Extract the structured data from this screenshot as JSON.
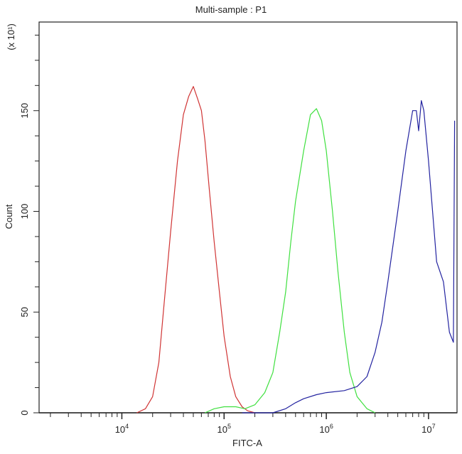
{
  "chart_data": {
    "type": "line",
    "title": "Multi-sample : P1",
    "xlabel": "FITC-A",
    "ylabel": "Count",
    "y_multiplier_label": "(x 10¹)",
    "x_scale": "log",
    "xlim": [
      1550,
      19000000
    ],
    "ylim": [
      0,
      194
    ],
    "x_ticks": [
      {
        "value": 10000,
        "base": "10",
        "exp": "4"
      },
      {
        "value": 100000,
        "base": "10",
        "exp": "5"
      },
      {
        "value": 1000000,
        "base": "10",
        "exp": "6"
      },
      {
        "value": 10000000,
        "base": "10",
        "exp": "7"
      }
    ],
    "y_ticks": [
      0,
      50,
      100,
      150
    ],
    "grid": false,
    "series": [
      {
        "color": "#d03434",
        "points": [
          [
            14000,
            0
          ],
          [
            17000,
            2
          ],
          [
            20000,
            8
          ],
          [
            23000,
            25
          ],
          [
            26000,
            55
          ],
          [
            30000,
            90
          ],
          [
            35000,
            125
          ],
          [
            40000,
            148
          ],
          [
            45000,
            157
          ],
          [
            50000,
            162
          ],
          [
            55000,
            156
          ],
          [
            60000,
            150
          ],
          [
            65000,
            135
          ],
          [
            72000,
            110
          ],
          [
            80000,
            85
          ],
          [
            90000,
            60
          ],
          [
            100000,
            38
          ],
          [
            115000,
            18
          ],
          [
            130000,
            8
          ],
          [
            150000,
            3
          ],
          [
            170000,
            1
          ],
          [
            200000,
            0
          ]
        ]
      },
      {
        "color": "#3fe03f",
        "points": [
          [
            65000,
            0
          ],
          [
            80000,
            2
          ],
          [
            100000,
            3
          ],
          [
            130000,
            3
          ],
          [
            160000,
            2
          ],
          [
            200000,
            4
          ],
          [
            250000,
            10
          ],
          [
            300000,
            20
          ],
          [
            350000,
            40
          ],
          [
            400000,
            60
          ],
          [
            450000,
            85
          ],
          [
            500000,
            105
          ],
          [
            600000,
            130
          ],
          [
            700000,
            148
          ],
          [
            800000,
            151
          ],
          [
            900000,
            145
          ],
          [
            1000000,
            130
          ],
          [
            1150000,
            100
          ],
          [
            1300000,
            70
          ],
          [
            1500000,
            40
          ],
          [
            1700000,
            20
          ],
          [
            2000000,
            8
          ],
          [
            2500000,
            2
          ],
          [
            3000000,
            0
          ]
        ]
      },
      {
        "color": "#2323a0",
        "points": [
          [
            150000,
            0
          ],
          [
            300000,
            0
          ],
          [
            400000,
            2
          ],
          [
            500000,
            5
          ],
          [
            600000,
            7
          ],
          [
            800000,
            9
          ],
          [
            1000000,
            10
          ],
          [
            1500000,
            11
          ],
          [
            2000000,
            13
          ],
          [
            2500000,
            18
          ],
          [
            3000000,
            30
          ],
          [
            3500000,
            45
          ],
          [
            4000000,
            65
          ],
          [
            5000000,
            100
          ],
          [
            6000000,
            130
          ],
          [
            7000000,
            150
          ],
          [
            7600000,
            150
          ],
          [
            8000000,
            140
          ],
          [
            8500000,
            155
          ],
          [
            9000000,
            150
          ],
          [
            10000000,
            125
          ],
          [
            12000000,
            75
          ],
          [
            14000000,
            65
          ],
          [
            16000000,
            40
          ],
          [
            17500000,
            35
          ],
          [
            18000000,
            145
          ]
        ]
      }
    ]
  }
}
